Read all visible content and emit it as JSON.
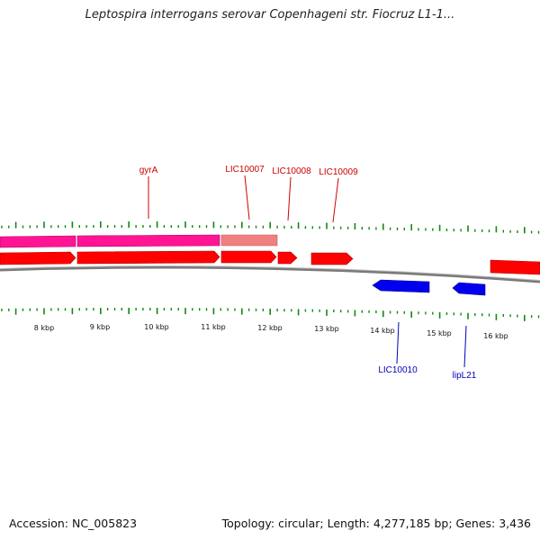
{
  "title": "Leptospira interrogans serovar Copenhageni str. Fiocruz L1-1...",
  "footer": {
    "accession": "Accession: NC_005823",
    "topology": "Topology: circular; Length: 4,277,185 bp; Genes: 3,436"
  },
  "colors": {
    "forward_gene": "#ff0000",
    "reverse_gene": "#0000ee",
    "pink_feature": "#ff1493",
    "light_feature": "#f08080",
    "forward_label": "#cc0000",
    "reverse_label": "#0000bb",
    "ticks": "#118811",
    "backbone": "#7a7a7a"
  },
  "scale_labels": [
    "8 kbp",
    "9 kbp",
    "10 kbp",
    "11 kbp",
    "12 kbp",
    "13 kbp",
    "14 kbp",
    "15 kbp",
    "16 kbp"
  ],
  "forward_gene_labels": [
    "gyrA",
    "LIC10007",
    "LIC10008",
    "LIC10009"
  ],
  "reverse_gene_labels": [
    "LIC10010",
    "lipL21"
  ]
}
